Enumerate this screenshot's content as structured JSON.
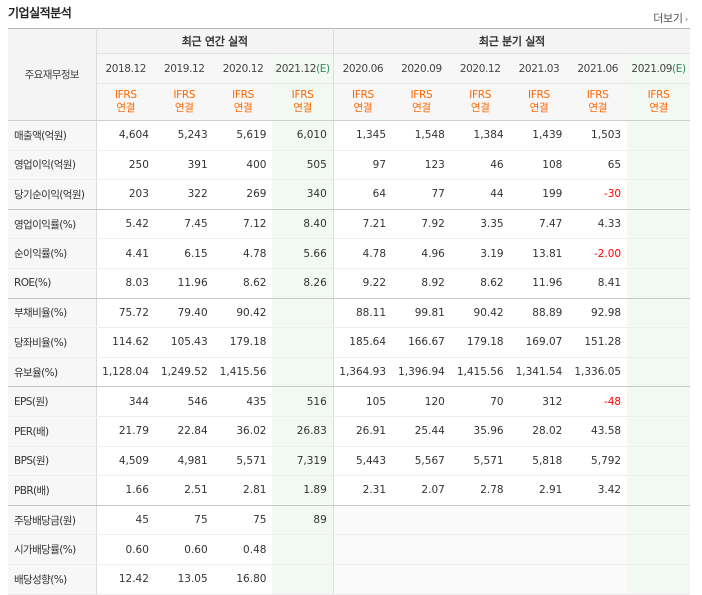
{
  "section_title": "기업실적분석",
  "more_label": "더보기",
  "more_arrow": "›",
  "row_header_label": "주요재무정보",
  "group_annual": "최근 연간 실적",
  "group_quarter": "최근 분기 실적",
  "columns": [
    {
      "date": "2018.12",
      "est": false,
      "ifrs": "IFRS",
      "consol": "연결"
    },
    {
      "date": "2019.12",
      "est": false,
      "ifrs": "IFRS",
      "consol": "연결"
    },
    {
      "date": "2020.12",
      "est": false,
      "ifrs": "IFRS",
      "consol": "연결"
    },
    {
      "date": "2021.12",
      "est": true,
      "est_mark": "(E)",
      "ifrs": "IFRS",
      "consol": "연결"
    },
    {
      "date": "2020.06",
      "est": false,
      "ifrs": "IFRS",
      "consol": "연결"
    },
    {
      "date": "2020.09",
      "est": false,
      "ifrs": "IFRS",
      "consol": "연결"
    },
    {
      "date": "2020.12",
      "est": false,
      "ifrs": "IFRS",
      "consol": "연결"
    },
    {
      "date": "2021.03",
      "est": false,
      "ifrs": "IFRS",
      "consol": "연결"
    },
    {
      "date": "2021.06",
      "est": false,
      "ifrs": "IFRS",
      "consol": "연결"
    },
    {
      "date": "2021.09",
      "est": true,
      "est_mark": "(E)",
      "ifrs": "IFRS",
      "consol": "연결"
    }
  ],
  "rows": [
    {
      "label": "매출액(억원)",
      "values": [
        "4,604",
        "5,243",
        "5,619",
        "6,010",
        "1,345",
        "1,548",
        "1,384",
        "1,439",
        "1,503",
        ""
      ]
    },
    {
      "label": "영업이익(억원)",
      "values": [
        "250",
        "391",
        "400",
        "505",
        "97",
        "123",
        "46",
        "108",
        "65",
        ""
      ]
    },
    {
      "label": "당기순이익(억원)",
      "values": [
        "203",
        "322",
        "269",
        "340",
        "64",
        "77",
        "44",
        "199",
        "-30",
        ""
      ]
    },
    {
      "label": "영업이익률(%)",
      "values": [
        "5.42",
        "7.45",
        "7.12",
        "8.40",
        "7.21",
        "7.92",
        "3.35",
        "7.47",
        "4.33",
        ""
      ]
    },
    {
      "label": "순이익률(%)",
      "values": [
        "4.41",
        "6.15",
        "4.78",
        "5.66",
        "4.78",
        "4.96",
        "3.19",
        "13.81",
        "-2.00",
        ""
      ]
    },
    {
      "label": "ROE(%)",
      "values": [
        "8.03",
        "11.96",
        "8.62",
        "8.26",
        "9.22",
        "8.92",
        "8.62",
        "11.96",
        "8.41",
        ""
      ]
    },
    {
      "label": "부채비율(%)",
      "values": [
        "75.72",
        "79.40",
        "90.42",
        "",
        "88.11",
        "99.81",
        "90.42",
        "88.89",
        "92.98",
        ""
      ]
    },
    {
      "label": "당좌비율(%)",
      "values": [
        "114.62",
        "105.43",
        "179.18",
        "",
        "185.64",
        "166.67",
        "179.18",
        "169.07",
        "151.28",
        ""
      ]
    },
    {
      "label": "유보율(%)",
      "values": [
        "1,128.04",
        "1,249.52",
        "1,415.56",
        "",
        "1,364.93",
        "1,396.94",
        "1,415.56",
        "1,341.54",
        "1,336.05",
        ""
      ]
    },
    {
      "label": "EPS(원)",
      "values": [
        "344",
        "546",
        "435",
        "516",
        "105",
        "120",
        "70",
        "312",
        "-48",
        ""
      ]
    },
    {
      "label": "PER(배)",
      "values": [
        "21.79",
        "22.84",
        "36.02",
        "26.83",
        "26.91",
        "25.44",
        "35.96",
        "28.02",
        "43.58",
        ""
      ]
    },
    {
      "label": "BPS(원)",
      "values": [
        "4,509",
        "4,981",
        "5,571",
        "7,319",
        "5,443",
        "5,567",
        "5,571",
        "5,818",
        "5,792",
        ""
      ]
    },
    {
      "label": "PBR(배)",
      "values": [
        "1.66",
        "2.51",
        "2.81",
        "1.89",
        "2.31",
        "2.07",
        "2.78",
        "2.91",
        "3.42",
        ""
      ]
    },
    {
      "label": "주당배당금(원)",
      "values": [
        "45",
        "75",
        "75",
        "89",
        "",
        "",
        "",
        "",
        "",
        ""
      ]
    },
    {
      "label": "시가배당률(%)",
      "values": [
        "0.60",
        "0.60",
        "0.48",
        "",
        "",
        "",
        "",
        "",
        "",
        ""
      ]
    },
    {
      "label": "배당성향(%)",
      "values": [
        "12.42",
        "13.05",
        "16.80",
        "",
        "",
        "",
        "",
        "",
        "",
        ""
      ]
    }
  ],
  "colors": {
    "ifrs_orange": "#ff6600",
    "estimate_green": "#2e8b57",
    "negative_red": "#ff0000",
    "estimate_bg": "#f2f8f2"
  }
}
